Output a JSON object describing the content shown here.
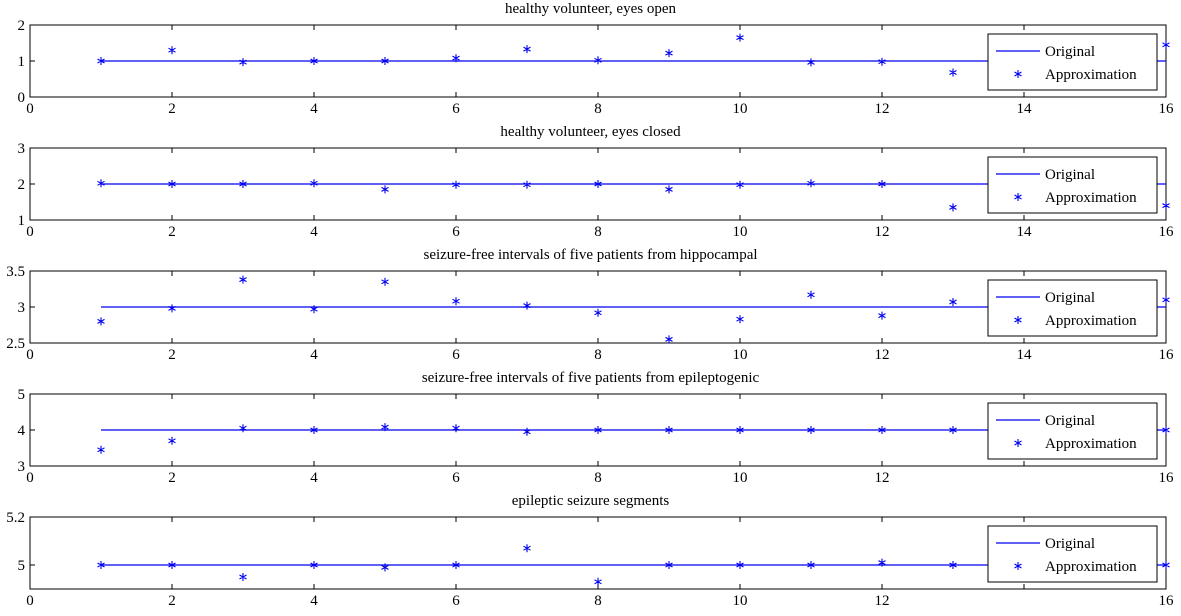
{
  "figure": {
    "background": "#ffffff",
    "line_color": "#0000ee",
    "axis_color": "#000000",
    "legend_position": "right"
  },
  "chart_data": [
    {
      "type": "line",
      "title": "healthy volunteer, eyes open",
      "xlim": [
        0,
        16
      ],
      "ylim": [
        0,
        2
      ],
      "xticks": [
        0,
        2,
        4,
        6,
        8,
        10,
        12,
        14,
        16
      ],
      "xtick_labels": [
        "0",
        "2",
        "4",
        "6",
        "8",
        "10",
        "12",
        "14",
        "16"
      ],
      "yticks": [
        0,
        1,
        2
      ],
      "ytick_labels": [
        "0",
        "1",
        "2"
      ],
      "grid": false,
      "legend": [
        "Original",
        "Approximation"
      ],
      "series": [
        {
          "name": "Original",
          "style": "line",
          "x": [
            1,
            16
          ],
          "y": [
            1,
            1
          ]
        },
        {
          "name": "Approximation",
          "style": "asterisk",
          "x": [
            1,
            2,
            3,
            4,
            5,
            6,
            7,
            8,
            9,
            10,
            11,
            12,
            13,
            14,
            15,
            16
          ],
          "y": [
            1.0,
            1.3,
            0.97,
            1.0,
            1.0,
            1.08,
            1.33,
            1.02,
            1.22,
            1.65,
            0.96,
            0.98,
            0.68,
            1.0,
            1.0,
            1.45
          ]
        }
      ]
    },
    {
      "type": "line",
      "title": "healthy volunteer, eyes closed",
      "xlim": [
        0,
        16
      ],
      "ylim": [
        1,
        3
      ],
      "xticks": [
        0,
        2,
        4,
        6,
        8,
        10,
        12,
        14,
        16
      ],
      "xtick_labels": [
        "0",
        "2",
        "4",
        "6",
        "8",
        "10",
        "12",
        "14",
        "16"
      ],
      "yticks": [
        1,
        2,
        3
      ],
      "ytick_labels": [
        "1",
        "2",
        "3"
      ],
      "grid": false,
      "legend": [
        "Original",
        "Approximation"
      ],
      "series": [
        {
          "name": "Original",
          "style": "line",
          "x": [
            1,
            16
          ],
          "y": [
            2,
            2
          ]
        },
        {
          "name": "Approximation",
          "style": "asterisk",
          "x": [
            1,
            2,
            3,
            4,
            5,
            6,
            7,
            8,
            9,
            10,
            11,
            12,
            13,
            14,
            15,
            16
          ],
          "y": [
            2.02,
            2.0,
            2.0,
            2.02,
            1.85,
            1.98,
            1.98,
            2.0,
            1.85,
            1.98,
            2.02,
            2.0,
            1.35,
            2.0,
            2.0,
            1.4
          ]
        }
      ]
    },
    {
      "type": "line",
      "title": "seizure-free intervals of five patients from hippocampal",
      "xlim": [
        0,
        16
      ],
      "ylim": [
        2.5,
        3.5
      ],
      "xticks": [
        0,
        2,
        4,
        6,
        8,
        10,
        12,
        14,
        16
      ],
      "xtick_labels": [
        "0",
        "2",
        "4",
        "6",
        "8",
        "10",
        "12",
        "14",
        "16"
      ],
      "yticks": [
        2.5,
        3,
        3.5
      ],
      "ytick_labels": [
        "2.5",
        "3",
        "3.5"
      ],
      "grid": false,
      "legend": [
        "Original",
        "Approximation"
      ],
      "series": [
        {
          "name": "Original",
          "style": "line",
          "x": [
            1,
            16
          ],
          "y": [
            3,
            3
          ]
        },
        {
          "name": "Approximation",
          "style": "asterisk",
          "x": [
            1,
            2,
            3,
            4,
            5,
            6,
            7,
            8,
            9,
            10,
            11,
            12,
            13,
            14,
            15,
            16
          ],
          "y": [
            2.8,
            2.98,
            3.38,
            2.97,
            3.35,
            3.08,
            3.02,
            2.92,
            2.55,
            2.83,
            3.17,
            2.88,
            3.07,
            3.0,
            3.0,
            3.1
          ]
        }
      ]
    },
    {
      "type": "line",
      "title": "seizure-free intervals of five patients from epileptogenic",
      "xlim": [
        0,
        16
      ],
      "ylim": [
        3,
        5
      ],
      "xticks": [
        0,
        2,
        4,
        6,
        8,
        10,
        12,
        14,
        16
      ],
      "xtick_labels": [
        "0",
        "2",
        "4",
        "6",
        "8",
        "10",
        "12",
        "",
        "16"
      ],
      "yticks": [
        3,
        4,
        5
      ],
      "ytick_labels": [
        "3",
        "4",
        "5"
      ],
      "grid": false,
      "legend": [
        "Original",
        "Approximation"
      ],
      "series": [
        {
          "name": "Original",
          "style": "line",
          "x": [
            1,
            16
          ],
          "y": [
            4,
            4
          ]
        },
        {
          "name": "Approximation",
          "style": "asterisk",
          "x": [
            1,
            2,
            3,
            4,
            5,
            6,
            7,
            8,
            9,
            10,
            11,
            12,
            13,
            14,
            15,
            16
          ],
          "y": [
            3.45,
            3.7,
            4.05,
            4.0,
            4.08,
            4.05,
            3.95,
            4.0,
            4.0,
            4.0,
            4.0,
            4.0,
            4.0,
            4.0,
            4.0,
            4.0
          ]
        }
      ]
    },
    {
      "type": "line",
      "title": "epileptic seizure segments",
      "xlim": [
        0,
        16
      ],
      "ylim": [
        4.9,
        5.2
      ],
      "xticks": [
        0,
        2,
        4,
        6,
        8,
        10,
        12,
        14,
        16
      ],
      "xtick_labels": [
        "0",
        "2",
        "4",
        "6",
        "8",
        "10",
        "12",
        "",
        "16"
      ],
      "yticks": [
        5,
        5.2
      ],
      "ytick_labels": [
        "5",
        "5.2"
      ],
      "grid": false,
      "legend": [
        "Original",
        "Approximation"
      ],
      "series": [
        {
          "name": "Original",
          "style": "line",
          "x": [
            1,
            16
          ],
          "y": [
            5,
            5
          ]
        },
        {
          "name": "Approximation",
          "style": "asterisk",
          "x": [
            1,
            2,
            3,
            4,
            5,
            6,
            7,
            8,
            9,
            10,
            11,
            12,
            13,
            14,
            15,
            16
          ],
          "y": [
            5.0,
            5.0,
            4.95,
            5.0,
            4.99,
            5.0,
            5.07,
            4.93,
            5.0,
            5.0,
            5.0,
            5.01,
            5.0,
            5.0,
            5.0,
            5.0
          ]
        }
      ]
    }
  ]
}
